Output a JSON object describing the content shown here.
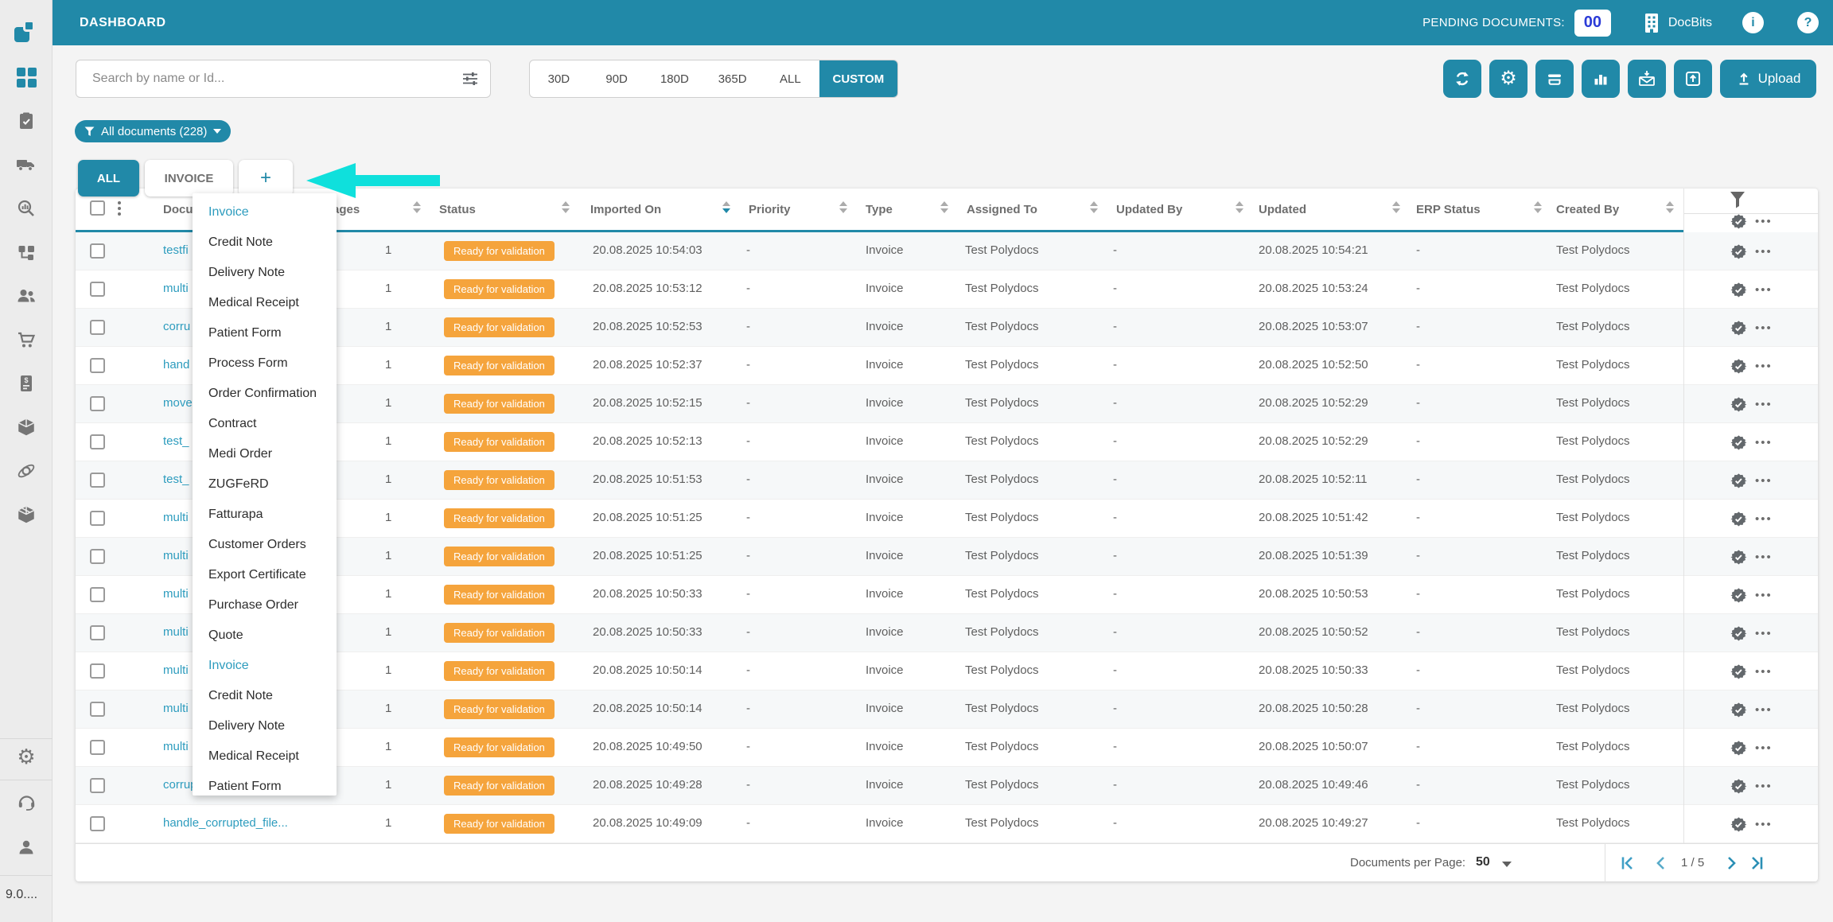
{
  "app": {
    "title": "DASHBOARD",
    "brand": "DocBits",
    "version": "9.0....",
    "pending_documents_label": "PENDING DOCUMENTS:",
    "pending_documents_count": "00",
    "info_glyph": "i",
    "help_glyph": "?"
  },
  "colors": {
    "accent": "#2189a8",
    "link": "#2d9cbe",
    "status_badge": "#f5a43c",
    "annotation_arrow": "#0fe0dc",
    "pending_count_text": "#2b3bd7"
  },
  "sidebar": {
    "items": [
      "docbits-logo",
      "dashboard-grid",
      "tasks-clipboard",
      "delivery-truck",
      "analytics-search",
      "workflow-tree",
      "users",
      "shopping-cart",
      "invoice-document",
      "package-open",
      "integrations-orbit",
      "package",
      "settings-gear",
      "support-headset",
      "user-profile"
    ]
  },
  "toolbar": {
    "search_placeholder": "Search by name or Id...",
    "date_filters": [
      "30D",
      "90D",
      "180D",
      "365D",
      "ALL",
      "CUSTOM"
    ],
    "active_date_filter": "CUSTOM",
    "icon_buttons": [
      "sync",
      "settings",
      "scanner",
      "bar-chart",
      "mail-import",
      "export-box"
    ],
    "upload_label": "Upload"
  },
  "filter_chip": {
    "label": "All documents (228)"
  },
  "tabs": [
    {
      "label": "ALL",
      "active": true
    },
    {
      "label": "INVOICE",
      "active": false
    },
    {
      "label": "+",
      "active": false
    }
  ],
  "type_menu": {
    "items": [
      {
        "label": "Invoice",
        "highlighted": true
      },
      {
        "label": "Credit Note",
        "highlighted": false
      },
      {
        "label": "Delivery Note",
        "highlighted": false
      },
      {
        "label": "Medical Receipt",
        "highlighted": false
      },
      {
        "label": "Patient Form",
        "highlighted": false
      },
      {
        "label": "Process Form",
        "highlighted": false
      },
      {
        "label": "Order Confirmation",
        "highlighted": false
      },
      {
        "label": "Contract",
        "highlighted": false
      },
      {
        "label": "Medi Order",
        "highlighted": false
      },
      {
        "label": "ZUGFeRD",
        "highlighted": false
      },
      {
        "label": "Fatturapa",
        "highlighted": false
      },
      {
        "label": "Customer Orders",
        "highlighted": false
      },
      {
        "label": "Export Certificate",
        "highlighted": false
      },
      {
        "label": "Purchase Order",
        "highlighted": false
      },
      {
        "label": "Quote",
        "highlighted": false
      },
      {
        "label": "Invoice",
        "highlighted": true
      },
      {
        "label": "Credit Note",
        "highlighted": false
      },
      {
        "label": "Delivery Note",
        "highlighted": false
      },
      {
        "label": "Medical Receipt",
        "highlighted": false
      },
      {
        "label": "Patient Form",
        "highlighted": false
      }
    ]
  },
  "table": {
    "columns": [
      "Document Name",
      "Pages",
      "Status",
      "Imported On",
      "Priority",
      "Type",
      "Assigned To",
      "Updated By",
      "Updated",
      "ERP Status",
      "Created By"
    ],
    "sorted_by": "Imported On",
    "sort_direction": "desc",
    "rows": [
      {
        "name": "testfi",
        "pages": "1",
        "status": "Ready for validation",
        "imported": "20.08.2025 10:54:03",
        "priority": "-",
        "type": "Invoice",
        "assigned_to": "Test Polydocs",
        "updated_by": "-",
        "updated": "20.08.2025 10:54:21",
        "erp_status": "-",
        "created_by": "Test Polydocs"
      },
      {
        "name": "multi",
        "pages": "1",
        "status": "Ready for validation",
        "imported": "20.08.2025 10:53:12",
        "priority": "-",
        "type": "Invoice",
        "assigned_to": "Test Polydocs",
        "updated_by": "-",
        "updated": "20.08.2025 10:53:24",
        "erp_status": "-",
        "created_by": "Test Polydocs"
      },
      {
        "name": "corru",
        "pages": "1",
        "status": "Ready for validation",
        "imported": "20.08.2025 10:52:53",
        "priority": "-",
        "type": "Invoice",
        "assigned_to": "Test Polydocs",
        "updated_by": "-",
        "updated": "20.08.2025 10:53:07",
        "erp_status": "-",
        "created_by": "Test Polydocs"
      },
      {
        "name": "hand",
        "pages": "1",
        "status": "Ready for validation",
        "imported": "20.08.2025 10:52:37",
        "priority": "-",
        "type": "Invoice",
        "assigned_to": "Test Polydocs",
        "updated_by": "-",
        "updated": "20.08.2025 10:52:50",
        "erp_status": "-",
        "created_by": "Test Polydocs"
      },
      {
        "name": "move",
        "pages": "1",
        "status": "Ready for validation",
        "imported": "20.08.2025 10:52:15",
        "priority": "-",
        "type": "Invoice",
        "assigned_to": "Test Polydocs",
        "updated_by": "-",
        "updated": "20.08.2025 10:52:29",
        "erp_status": "-",
        "created_by": "Test Polydocs"
      },
      {
        "name": "test_",
        "pages": "1",
        "status": "Ready for validation",
        "imported": "20.08.2025 10:52:13",
        "priority": "-",
        "type": "Invoice",
        "assigned_to": "Test Polydocs",
        "updated_by": "-",
        "updated": "20.08.2025 10:52:29",
        "erp_status": "-",
        "created_by": "Test Polydocs"
      },
      {
        "name": "test_",
        "pages": "1",
        "status": "Ready for validation",
        "imported": "20.08.2025 10:51:53",
        "priority": "-",
        "type": "Invoice",
        "assigned_to": "Test Polydocs",
        "updated_by": "-",
        "updated": "20.08.2025 10:52:11",
        "erp_status": "-",
        "created_by": "Test Polydocs"
      },
      {
        "name": "multi",
        "pages": "1",
        "status": "Ready for validation",
        "imported": "20.08.2025 10:51:25",
        "priority": "-",
        "type": "Invoice",
        "assigned_to": "Test Polydocs",
        "updated_by": "-",
        "updated": "20.08.2025 10:51:42",
        "erp_status": "-",
        "created_by": "Test Polydocs"
      },
      {
        "name": "multi",
        "pages": "1",
        "status": "Ready for validation",
        "imported": "20.08.2025 10:51:25",
        "priority": "-",
        "type": "Invoice",
        "assigned_to": "Test Polydocs",
        "updated_by": "-",
        "updated": "20.08.2025 10:51:39",
        "erp_status": "-",
        "created_by": "Test Polydocs"
      },
      {
        "name": "multi",
        "pages": "1",
        "status": "Ready for validation",
        "imported": "20.08.2025 10:50:33",
        "priority": "-",
        "type": "Invoice",
        "assigned_to": "Test Polydocs",
        "updated_by": "-",
        "updated": "20.08.2025 10:50:53",
        "erp_status": "-",
        "created_by": "Test Polydocs"
      },
      {
        "name": "multi",
        "pages": "1",
        "status": "Ready for validation",
        "imported": "20.08.2025 10:50:33",
        "priority": "-",
        "type": "Invoice",
        "assigned_to": "Test Polydocs",
        "updated_by": "-",
        "updated": "20.08.2025 10:50:52",
        "erp_status": "-",
        "created_by": "Test Polydocs"
      },
      {
        "name": "multi",
        "pages": "1",
        "status": "Ready for validation",
        "imported": "20.08.2025 10:50:14",
        "priority": "-",
        "type": "Invoice",
        "assigned_to": "Test Polydocs",
        "updated_by": "-",
        "updated": "20.08.2025 10:50:33",
        "erp_status": "-",
        "created_by": "Test Polydocs"
      },
      {
        "name": "multi",
        "pages": "1",
        "status": "Ready for validation",
        "imported": "20.08.2025 10:50:14",
        "priority": "-",
        "type": "Invoice",
        "assigned_to": "Test Polydocs",
        "updated_by": "-",
        "updated": "20.08.2025 10:50:28",
        "erp_status": "-",
        "created_by": "Test Polydocs"
      },
      {
        "name": "multi",
        "pages": "1",
        "status": "Ready for validation",
        "imported": "20.08.2025 10:49:50",
        "priority": "-",
        "type": "Invoice",
        "assigned_to": "Test Polydocs",
        "updated_by": "-",
        "updated": "20.08.2025 10:50:07",
        "erp_status": "-",
        "created_by": "Test Polydocs"
      },
      {
        "name": "corrupted_document...",
        "pages": "1",
        "status": "Ready for validation",
        "imported": "20.08.2025 10:49:28",
        "priority": "-",
        "type": "Invoice",
        "assigned_to": "Test Polydocs",
        "updated_by": "-",
        "updated": "20.08.2025 10:49:46",
        "erp_status": "-",
        "created_by": "Test Polydocs"
      },
      {
        "name": "handle_corrupted_file...",
        "pages": "1",
        "status": "Ready for validation",
        "imported": "20.08.2025 10:49:09",
        "priority": "-",
        "type": "Invoice",
        "assigned_to": "Test Polydocs",
        "updated_by": "-",
        "updated": "20.08.2025 10:49:27",
        "erp_status": "-",
        "created_by": "Test Polydocs"
      }
    ]
  },
  "pagination": {
    "per_page_label": "Documents per Page:",
    "per_page": "50",
    "page_indicator": "1 / 5"
  }
}
